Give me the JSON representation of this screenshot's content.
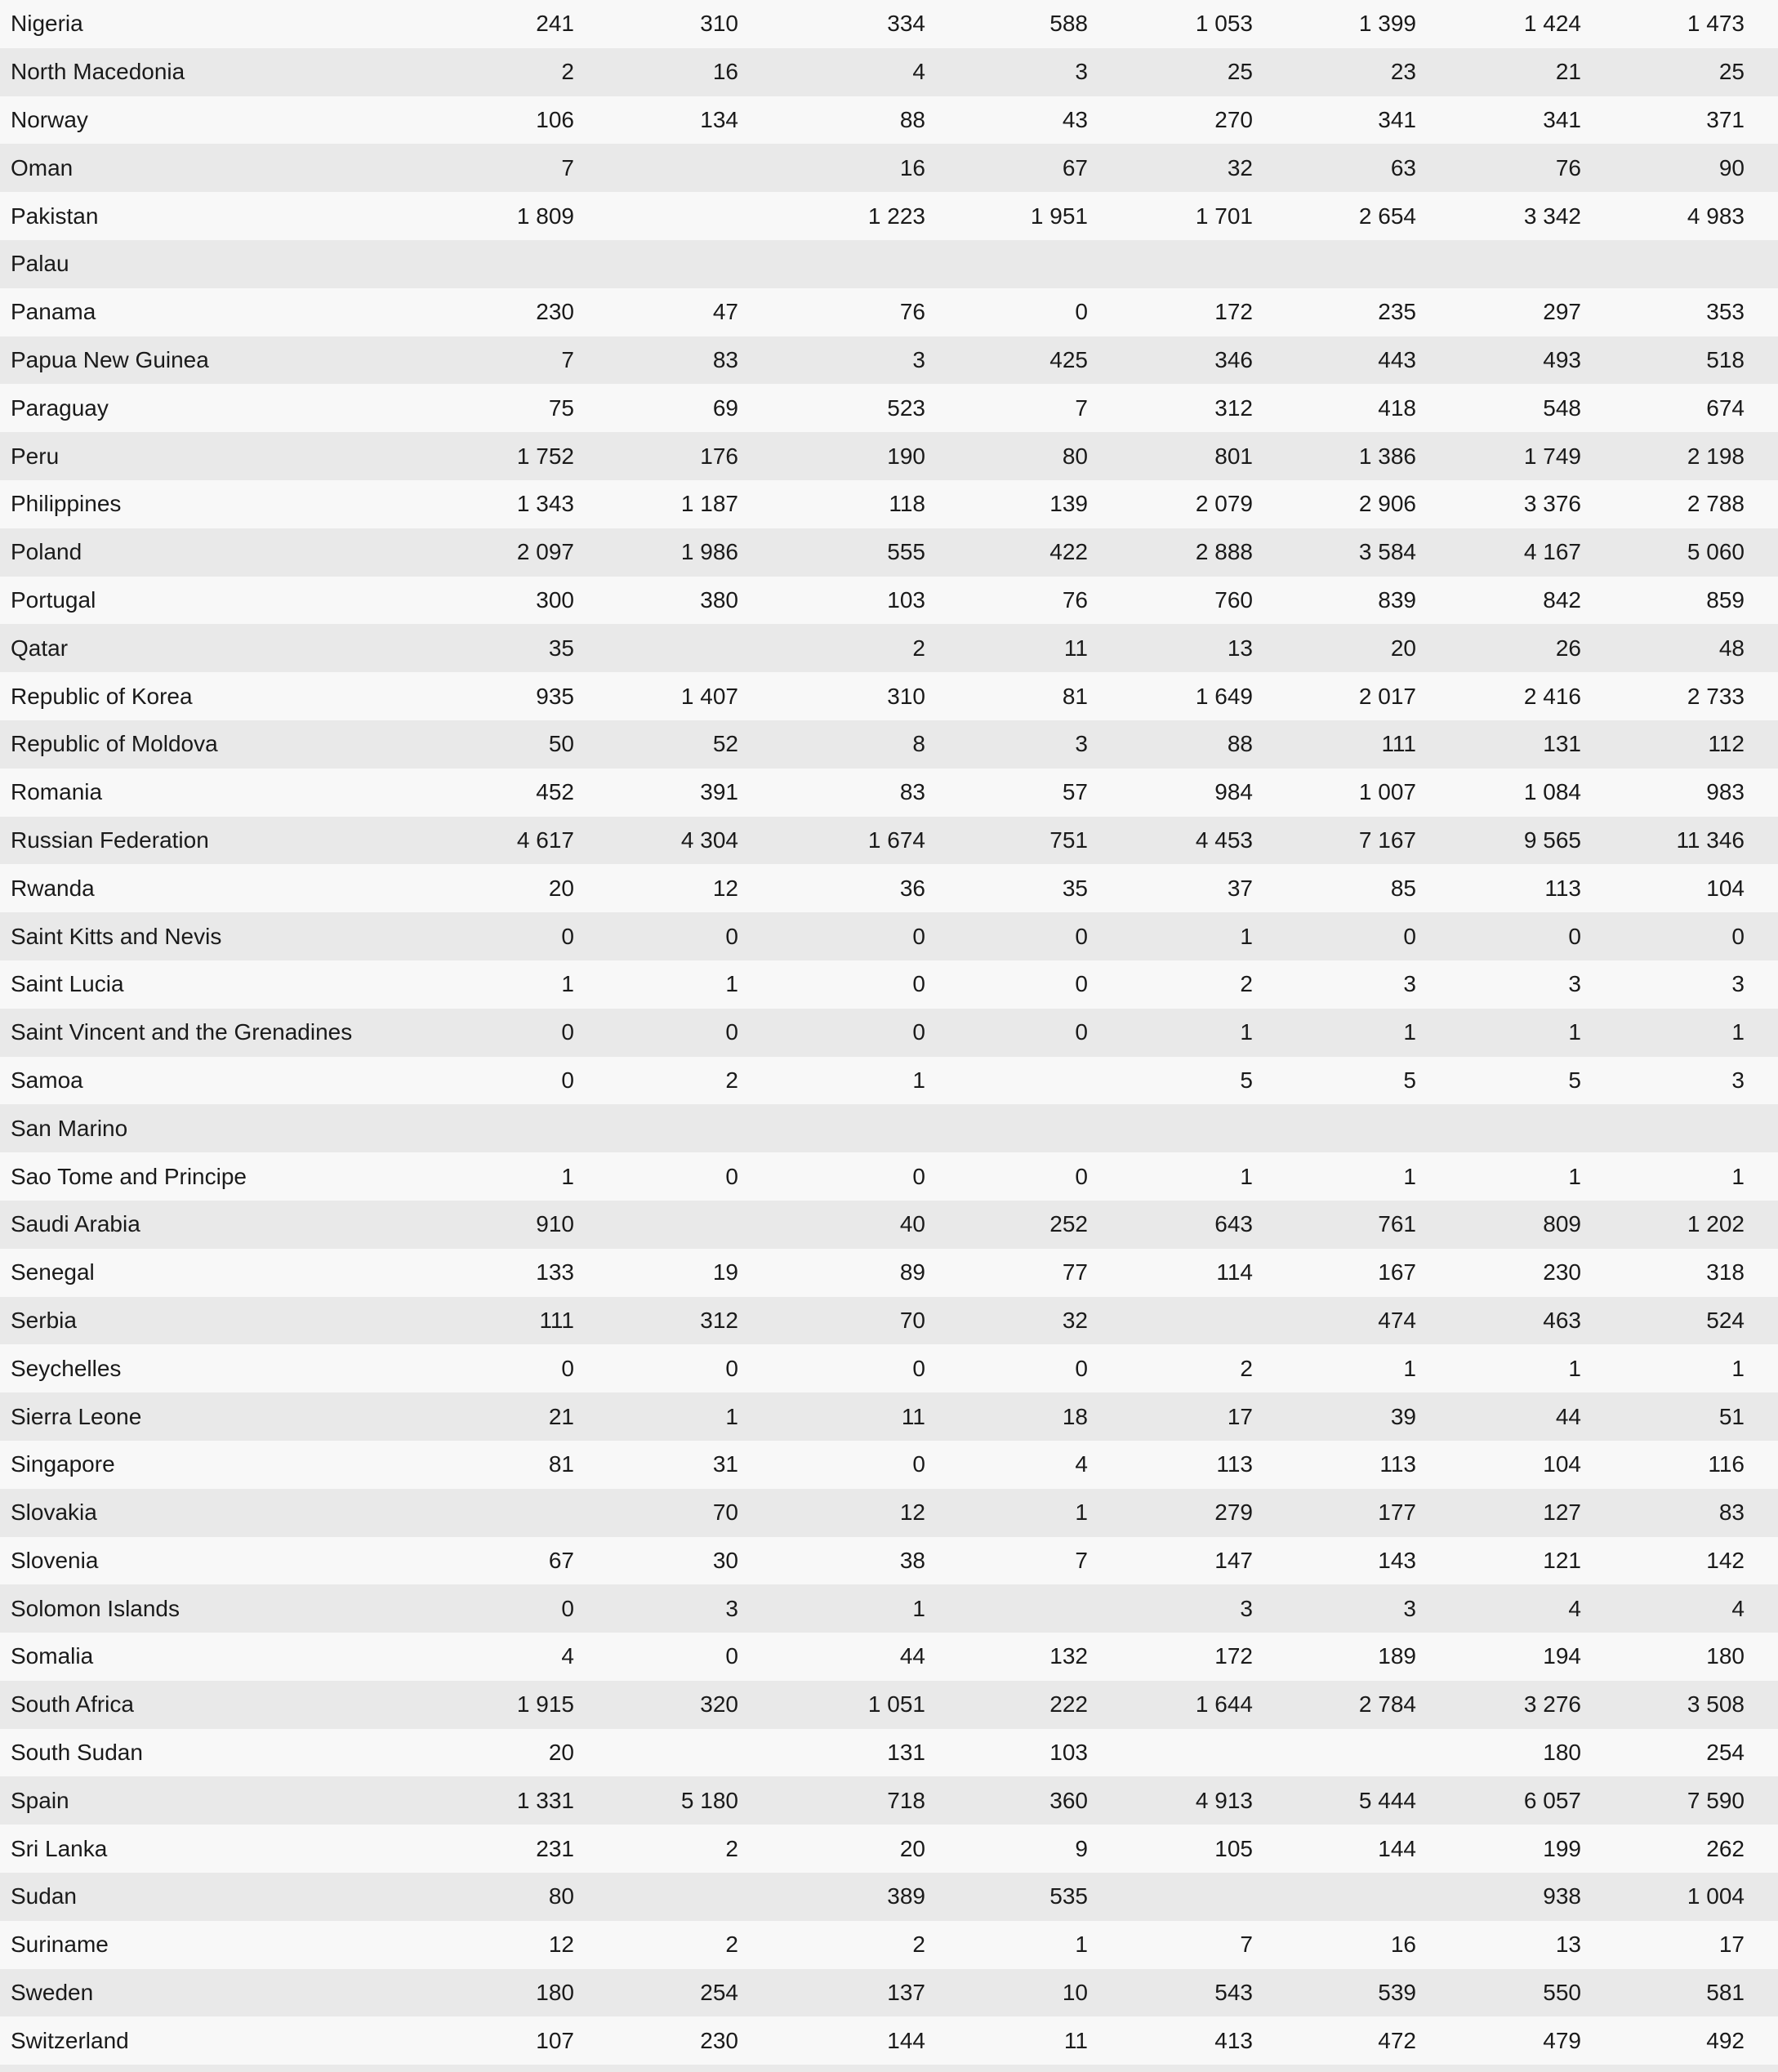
{
  "table": {
    "colors": {
      "row_light": "#f8f8f8",
      "row_dark": "#e9e9e9",
      "text": "#1a1a1a"
    },
    "rows": [
      {
        "country": "Nigeria",
        "values": [
          "241",
          "310",
          "334",
          "588",
          "1 053",
          "1 399",
          "1 424",
          "1 473"
        ]
      },
      {
        "country": "North Macedonia",
        "values": [
          "2",
          "16",
          "4",
          "3",
          "25",
          "23",
          "21",
          "25"
        ]
      },
      {
        "country": "Norway",
        "values": [
          "106",
          "134",
          "88",
          "43",
          "270",
          "341",
          "341",
          "371"
        ]
      },
      {
        "country": "Oman",
        "values": [
          "7",
          "",
          "16",
          "67",
          "32",
          "63",
          "76",
          "90"
        ]
      },
      {
        "country": "Pakistan",
        "values": [
          "1 809",
          "",
          "1 223",
          "1 951",
          "1 701",
          "2 654",
          "3 342",
          "4 983"
        ]
      },
      {
        "country": "Palau",
        "values": [
          "",
          "",
          "",
          "",
          "",
          "",
          "",
          ""
        ]
      },
      {
        "country": "Panama",
        "values": [
          "230",
          "47",
          "76",
          "0",
          "172",
          "235",
          "297",
          "353"
        ]
      },
      {
        "country": "Papua New Guinea",
        "values": [
          "7",
          "83",
          "3",
          "425",
          "346",
          "443",
          "493",
          "518"
        ]
      },
      {
        "country": "Paraguay",
        "values": [
          "75",
          "69",
          "523",
          "7",
          "312",
          "418",
          "548",
          "674"
        ]
      },
      {
        "country": "Peru",
        "values": [
          "1 752",
          "176",
          "190",
          "80",
          "801",
          "1 386",
          "1 749",
          "2 198"
        ]
      },
      {
        "country": "Philippines",
        "values": [
          "1 343",
          "1 187",
          "118",
          "139",
          "2 079",
          "2 906",
          "3 376",
          "2 788"
        ]
      },
      {
        "country": "Poland",
        "values": [
          "2 097",
          "1 986",
          "555",
          "422",
          "2 888",
          "3 584",
          "4 167",
          "5 060"
        ]
      },
      {
        "country": "Portugal",
        "values": [
          "300",
          "380",
          "103",
          "76",
          "760",
          "839",
          "842",
          "859"
        ]
      },
      {
        "country": "Qatar",
        "values": [
          "35",
          "",
          "2",
          "11",
          "13",
          "20",
          "26",
          "48"
        ]
      },
      {
        "country": "Republic of Korea",
        "values": [
          "935",
          "1 407",
          "310",
          "81",
          "1 649",
          "2 017",
          "2 416",
          "2 733"
        ]
      },
      {
        "country": "Republic of Moldova",
        "values": [
          "50",
          "52",
          "8",
          "3",
          "88",
          "111",
          "131",
          "112"
        ]
      },
      {
        "country": "Romania",
        "values": [
          "452",
          "391",
          "83",
          "57",
          "984",
          "1 007",
          "1 084",
          "983"
        ]
      },
      {
        "country": "Russian Federation",
        "values": [
          "4 617",
          "4 304",
          "1 674",
          "751",
          "4 453",
          "7 167",
          "9 565",
          "11 346"
        ]
      },
      {
        "country": "Rwanda",
        "values": [
          "20",
          "12",
          "36",
          "35",
          "37",
          "85",
          "113",
          "104"
        ]
      },
      {
        "country": "Saint Kitts and Nevis",
        "values": [
          "0",
          "0",
          "0",
          "0",
          "1",
          "0",
          "0",
          "0"
        ]
      },
      {
        "country": "Saint Lucia",
        "values": [
          "1",
          "1",
          "0",
          "0",
          "2",
          "3",
          "3",
          "3"
        ]
      },
      {
        "country": "Saint Vincent and the Grenadines",
        "values": [
          "0",
          "0",
          "0",
          "0",
          "1",
          "1",
          "1",
          "1"
        ]
      },
      {
        "country": "Samoa",
        "values": [
          "0",
          "2",
          "1",
          "",
          "5",
          "5",
          "5",
          "3"
        ]
      },
      {
        "country": "San Marino",
        "values": [
          "",
          "",
          "",
          "",
          "",
          "",
          "",
          ""
        ]
      },
      {
        "country": "Sao Tome and Principe",
        "values": [
          "1",
          "0",
          "0",
          "0",
          "1",
          "1",
          "1",
          "1"
        ]
      },
      {
        "country": "Saudi Arabia",
        "values": [
          "910",
          "",
          "40",
          "252",
          "643",
          "761",
          "809",
          "1 202"
        ]
      },
      {
        "country": "Senegal",
        "values": [
          "133",
          "19",
          "89",
          "77",
          "114",
          "167",
          "230",
          "318"
        ]
      },
      {
        "country": "Serbia",
        "values": [
          "111",
          "312",
          "70",
          "32",
          "",
          "474",
          "463",
          "524"
        ]
      },
      {
        "country": "Seychelles",
        "values": [
          "0",
          "0",
          "0",
          "0",
          "2",
          "1",
          "1",
          "1"
        ]
      },
      {
        "country": "Sierra Leone",
        "values": [
          "21",
          "1",
          "11",
          "18",
          "17",
          "39",
          "44",
          "51"
        ]
      },
      {
        "country": "Singapore",
        "values": [
          "81",
          "31",
          "0",
          "4",
          "113",
          "113",
          "104",
          "116"
        ]
      },
      {
        "country": "Slovakia",
        "values": [
          "",
          "70",
          "12",
          "1",
          "279",
          "177",
          "127",
          "83"
        ]
      },
      {
        "country": "Slovenia",
        "values": [
          "67",
          "30",
          "38",
          "7",
          "147",
          "143",
          "121",
          "142"
        ]
      },
      {
        "country": "Solomon Islands",
        "values": [
          "0",
          "3",
          "1",
          "",
          "3",
          "3",
          "4",
          "4"
        ]
      },
      {
        "country": "Somalia",
        "values": [
          "4",
          "0",
          "44",
          "132",
          "172",
          "189",
          "194",
          "180"
        ]
      },
      {
        "country": "South Africa",
        "values": [
          "1 915",
          "320",
          "1 051",
          "222",
          "1 644",
          "2 784",
          "3 276",
          "3 508"
        ]
      },
      {
        "country": "South Sudan",
        "values": [
          "20",
          "",
          "131",
          "103",
          "",
          "",
          "180",
          "254"
        ]
      },
      {
        "country": "Spain",
        "values": [
          "1 331",
          "5 180",
          "718",
          "360",
          "4 913",
          "5 444",
          "6 057",
          "7 590"
        ]
      },
      {
        "country": "Sri Lanka",
        "values": [
          "231",
          "2",
          "20",
          "9",
          "105",
          "144",
          "199",
          "262"
        ]
      },
      {
        "country": "Sudan",
        "values": [
          "80",
          "",
          "389",
          "535",
          "",
          "",
          "938",
          "1 004"
        ]
      },
      {
        "country": "Suriname",
        "values": [
          "12",
          "2",
          "2",
          "1",
          "7",
          "16",
          "13",
          "17"
        ]
      },
      {
        "country": "Sweden",
        "values": [
          "180",
          "254",
          "137",
          "10",
          "543",
          "539",
          "550",
          "581"
        ]
      },
      {
        "country": "Switzerland",
        "values": [
          "107",
          "230",
          "144",
          "11",
          "413",
          "472",
          "479",
          "492"
        ]
      }
    ]
  }
}
